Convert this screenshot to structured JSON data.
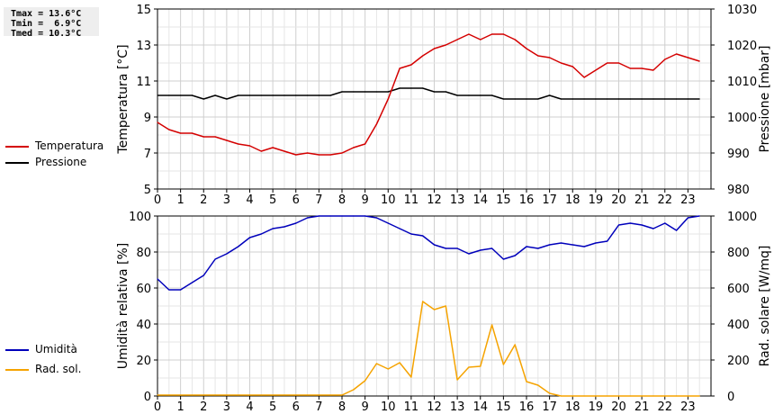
{
  "stats": {
    "tmax": "Tmax = 13.6°C",
    "tmin": "Tmin =  6.9°C",
    "tmed": "Tmed = 10.3°C"
  },
  "legend_top": [
    {
      "label": "Temperatura",
      "color": "#d40000"
    },
    {
      "label": "Pressione",
      "color": "#000000"
    }
  ],
  "legend_bottom": [
    {
      "label": "Umidità",
      "color": "#0000bb"
    },
    {
      "label": "Rad. sol.",
      "color": "#f5a300"
    }
  ],
  "chart_data": [
    {
      "type": "line",
      "xlabel": "",
      "x_ticks": [
        "0",
        "1",
        "2",
        "3",
        "4",
        "5",
        "6",
        "7",
        "8",
        "9",
        "10",
        "11",
        "12",
        "13",
        "14",
        "15",
        "16",
        "17",
        "18",
        "19",
        "20",
        "21",
        "22",
        "23"
      ],
      "xlim": [
        0,
        24
      ],
      "grid": true,
      "ylabel_left": "Temperatura [°C]",
      "ylim_left": [
        5,
        15
      ],
      "yticks_left": [
        "5",
        "7",
        "9",
        "11",
        "13",
        "15"
      ],
      "ylabel_right": "Pressione [mbar]",
      "ylim_right": [
        980,
        1030
      ],
      "yticks_right": [
        "980",
        "990",
        "1000",
        "1010",
        "1020",
        "1030"
      ],
      "series": [
        {
          "name": "Temperatura",
          "color": "#d40000",
          "axis": "left",
          "x": [
            0,
            0.5,
            1,
            1.5,
            2,
            2.5,
            3,
            3.5,
            4,
            4.5,
            5,
            5.5,
            6,
            6.5,
            7,
            7.5,
            8,
            8.5,
            9,
            9.5,
            10,
            10.5,
            11,
            11.5,
            12,
            12.5,
            13,
            13.5,
            14,
            14.5,
            15,
            15.5,
            16,
            16.5,
            17,
            17.5,
            18,
            18.5,
            19,
            19.5,
            20,
            20.5,
            21,
            21.5,
            22,
            22.5,
            23,
            23.5
          ],
          "values": [
            8.7,
            8.3,
            8.1,
            8.1,
            7.9,
            7.9,
            7.7,
            7.5,
            7.4,
            7.1,
            7.3,
            7.1,
            6.9,
            7.0,
            6.9,
            6.9,
            7.0,
            7.3,
            7.5,
            8.6,
            10.0,
            11.7,
            11.9,
            12.4,
            12.8,
            13.0,
            13.3,
            13.6,
            13.3,
            13.6,
            13.6,
            13.3,
            12.8,
            12.4,
            12.3,
            12.0,
            11.8,
            11.2,
            11.6,
            12.0,
            12.0,
            11.7,
            11.7,
            11.6,
            12.2,
            12.5,
            12.3,
            12.1
          ]
        },
        {
          "name": "Pressione",
          "color": "#000000",
          "axis": "right",
          "x": [
            0,
            0.5,
            1,
            1.5,
            2,
            2.5,
            3,
            3.5,
            4,
            4.5,
            5,
            5.5,
            6,
            6.5,
            7,
            7.5,
            8,
            8.5,
            9,
            9.5,
            10,
            10.5,
            11,
            11.5,
            12,
            12.5,
            13,
            13.5,
            14,
            14.5,
            15,
            15.5,
            16,
            16.5,
            17,
            17.5,
            18,
            18.5,
            19,
            19.5,
            20,
            20.5,
            21,
            21.5,
            22,
            22.5,
            23,
            23.5
          ],
          "values": [
            1006,
            1006,
            1006,
            1006,
            1005,
            1006,
            1005,
            1006,
            1006,
            1006,
            1006,
            1006,
            1006,
            1006,
            1006,
            1006,
            1007,
            1007,
            1007,
            1007,
            1007,
            1008,
            1008,
            1008,
            1007,
            1007,
            1006,
            1006,
            1006,
            1006,
            1005,
            1005,
            1005,
            1005,
            1006,
            1005,
            1005,
            1005,
            1005,
            1005,
            1005,
            1005,
            1005,
            1005,
            1005,
            1005,
            1005,
            1005
          ]
        }
      ]
    },
    {
      "type": "line",
      "xlabel": "",
      "x_ticks": [
        "0",
        "1",
        "2",
        "3",
        "4",
        "5",
        "6",
        "7",
        "8",
        "9",
        "10",
        "11",
        "12",
        "13",
        "14",
        "15",
        "16",
        "17",
        "18",
        "19",
        "20",
        "21",
        "22",
        "23"
      ],
      "xlim": [
        0,
        24
      ],
      "grid": true,
      "ylabel_left": "Umidità relativa [%]",
      "ylim_left": [
        0,
        100
      ],
      "yticks_left": [
        "0",
        "20",
        "40",
        "60",
        "80",
        "100"
      ],
      "ylabel_right": "Rad. solare [W/mq]",
      "ylim_right": [
        0,
        1000
      ],
      "yticks_right": [
        "0",
        "200",
        "400",
        "600",
        "800",
        "1000"
      ],
      "series": [
        {
          "name": "Umidità",
          "color": "#0000bb",
          "axis": "left",
          "x": [
            0,
            0.5,
            1,
            1.5,
            2,
            2.5,
            3,
            3.5,
            4,
            4.5,
            5,
            5.5,
            6,
            6.5,
            7,
            7.5,
            8,
            8.5,
            9,
            9.5,
            10,
            10.5,
            11,
            11.5,
            12,
            12.5,
            13,
            13.5,
            14,
            14.5,
            15,
            15.5,
            16,
            16.5,
            17,
            17.5,
            18,
            18.5,
            19,
            19.5,
            20,
            20.5,
            21,
            21.5,
            22,
            22.5,
            23,
            23.5
          ],
          "values": [
            65,
            59,
            59,
            63,
            67,
            76,
            79,
            83,
            88,
            90,
            93,
            94,
            96,
            99,
            100,
            100,
            100,
            100,
            100,
            99,
            96,
            93,
            90,
            89,
            84,
            82,
            82,
            79,
            81,
            82,
            76,
            78,
            83,
            82,
            84,
            85,
            84,
            83,
            85,
            86,
            95,
            96,
            95,
            93,
            96,
            92,
            99,
            100
          ]
        },
        {
          "name": "Rad. sol.",
          "color": "#f5a300",
          "axis": "right",
          "x": [
            0,
            0.5,
            1,
            1.5,
            2,
            2.5,
            3,
            3.5,
            4,
            4.5,
            5,
            5.5,
            6,
            6.5,
            7,
            7.5,
            8,
            8.5,
            9,
            9.5,
            10,
            10.5,
            11,
            11.5,
            12,
            12.5,
            13,
            13.5,
            14,
            14.5,
            15,
            15.5,
            16,
            16.5,
            17,
            17.5,
            18,
            18.5,
            19,
            19.5,
            20,
            20.5,
            21,
            21.5,
            22,
            22.5,
            23,
            23.5
          ],
          "values": [
            5,
            5,
            5,
            5,
            5,
            5,
            5,
            5,
            5,
            5,
            5,
            5,
            5,
            5,
            5,
            5,
            5,
            35,
            85,
            180,
            150,
            185,
            105,
            525,
            480,
            500,
            90,
            160,
            165,
            395,
            175,
            285,
            80,
            60,
            15,
            0,
            0,
            0,
            0,
            0,
            0,
            0,
            0,
            0,
            0,
            0,
            0,
            0
          ]
        }
      ]
    }
  ]
}
